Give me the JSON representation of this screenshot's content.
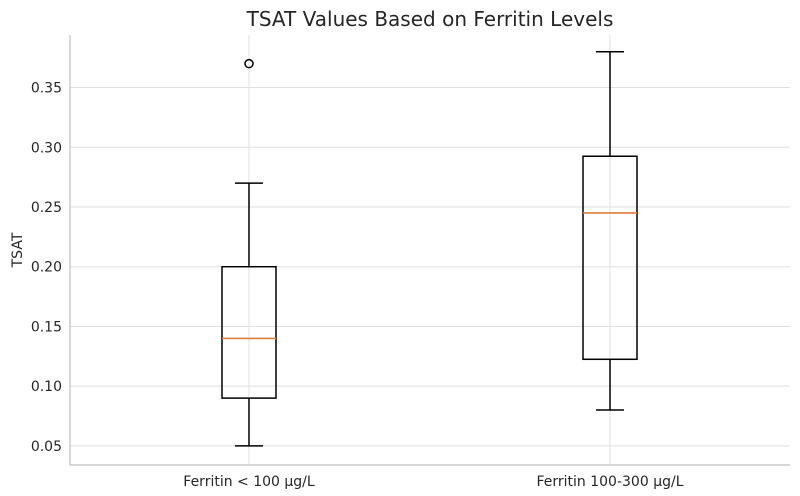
{
  "chart_data": {
    "type": "box",
    "title": "TSAT Values Based on Ferritin Levels",
    "xlabel": "",
    "ylabel": "TSAT",
    "ylim": [
      0.034,
      0.394
    ],
    "yticks": [
      0.05,
      0.1,
      0.15,
      0.2,
      0.25,
      0.3,
      0.35
    ],
    "ytick_labels": [
      "0.05",
      "0.10",
      "0.15",
      "0.20",
      "0.25",
      "0.30",
      "0.35"
    ],
    "grid": true,
    "categories": [
      "Ferritin < 100 µg/L",
      "Ferritin 100-300 µg/L"
    ],
    "boxes": [
      {
        "whisker_low": 0.05,
        "q1": 0.09,
        "median": 0.14,
        "q3": 0.2,
        "whisker_high": 0.27,
        "outliers": [
          0.37
        ]
      },
      {
        "whisker_low": 0.08,
        "q1": 0.1225,
        "median": 0.245,
        "q3": 0.2925,
        "whisker_high": 0.38,
        "outliers": []
      }
    ],
    "colors": {
      "box": "#000000",
      "median": "#e07b39",
      "grid": "#e0e0e0",
      "spine": "#bfbfbf",
      "text": "#262626"
    }
  }
}
